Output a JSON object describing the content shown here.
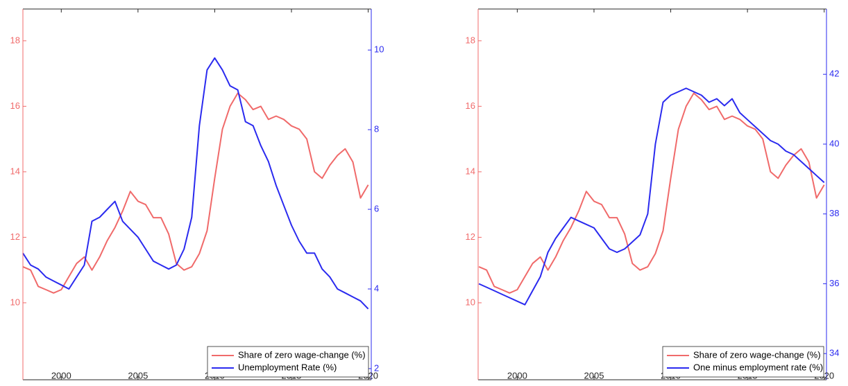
{
  "chart_data": [
    {
      "type": "line",
      "x": [
        1997.5,
        1998,
        1998.5,
        1999,
        1999.5,
        2000,
        2000.5,
        2001,
        2001.5,
        2002,
        2002.5,
        2003,
        2003.5,
        2004,
        2004.5,
        2005,
        2005.5,
        2006,
        2006.5,
        2007,
        2007.5,
        2008,
        2008.5,
        2009,
        2009.5,
        2010,
        2010.5,
        2011,
        2011.5,
        2012,
        2012.5,
        2013,
        2013.5,
        2014,
        2014.5,
        2015,
        2015.5,
        2016,
        2016.5,
        2017,
        2017.5,
        2018,
        2018.5,
        2019,
        2019.5,
        2020
      ],
      "series": [
        {
          "name": "Share of zero wage-change (%)",
          "color": "#f06a6a",
          "axis": "y",
          "values": [
            11.1,
            11.0,
            10.5,
            10.4,
            10.3,
            10.4,
            10.8,
            11.2,
            11.4,
            11.0,
            11.4,
            11.9,
            12.3,
            12.8,
            13.4,
            13.1,
            13.0,
            12.6,
            12.6,
            12.1,
            11.2,
            11.0,
            11.1,
            11.5,
            12.2,
            13.8,
            15.3,
            16.0,
            16.4,
            16.2,
            15.9,
            16.0,
            15.6,
            15.7,
            15.6,
            15.4,
            15.3,
            15.0,
            14.0,
            13.8,
            14.2,
            14.5,
            14.7,
            14.3,
            13.2,
            13.6
          ]
        },
        {
          "name": "Unemployment Rate (%)",
          "color": "#2a2aef",
          "axis": "y2",
          "values": [
            4.9,
            4.6,
            4.5,
            4.3,
            4.2,
            4.1,
            4.0,
            4.3,
            4.6,
            5.7,
            5.8,
            6.0,
            6.2,
            5.7,
            5.5,
            5.3,
            5.0,
            4.7,
            4.6,
            4.5,
            4.6,
            5.0,
            5.8,
            8.1,
            9.5,
            9.8,
            9.5,
            9.1,
            9.0,
            8.2,
            8.1,
            7.6,
            7.2,
            6.6,
            6.1,
            5.6,
            5.2,
            4.9,
            4.9,
            4.5,
            4.3,
            4.0,
            3.9,
            3.8,
            3.7,
            3.5
          ]
        }
      ],
      "xlim": [
        1997.5,
        2020.2
      ],
      "xticks": [
        2000,
        2005,
        2010,
        2015,
        2020
      ],
      "ylim": [
        7.65,
        18.97
      ],
      "yticks": [
        10,
        12,
        14,
        16,
        18
      ],
      "y2lim": [
        1.72,
        11.03
      ],
      "y2ticks": [
        2,
        4,
        6,
        8,
        10
      ],
      "legend": "lower right"
    },
    {
      "type": "line",
      "x": [
        1997.5,
        1998,
        1998.5,
        1999,
        1999.5,
        2000,
        2000.5,
        2001,
        2001.5,
        2002,
        2002.5,
        2003,
        2003.5,
        2004,
        2004.5,
        2005,
        2005.5,
        2006,
        2006.5,
        2007,
        2007.5,
        2008,
        2008.5,
        2009,
        2009.5,
        2010,
        2010.5,
        2011,
        2011.5,
        2012,
        2012.5,
        2013,
        2013.5,
        2014,
        2014.5,
        2015,
        2015.5,
        2016,
        2016.5,
        2017,
        2017.5,
        2018,
        2018.5,
        2019,
        2019.5,
        2020
      ],
      "series": [
        {
          "name": "Share of zero wage-change (%)",
          "color": "#f06a6a",
          "axis": "y",
          "values": [
            11.1,
            11.0,
            10.5,
            10.4,
            10.3,
            10.4,
            10.8,
            11.2,
            11.4,
            11.0,
            11.4,
            11.9,
            12.3,
            12.8,
            13.4,
            13.1,
            13.0,
            12.6,
            12.6,
            12.1,
            11.2,
            11.0,
            11.1,
            11.5,
            12.2,
            13.8,
            15.3,
            16.0,
            16.4,
            16.2,
            15.9,
            16.0,
            15.6,
            15.7,
            15.6,
            15.4,
            15.3,
            15.0,
            14.0,
            13.8,
            14.2,
            14.5,
            14.7,
            14.3,
            13.2,
            13.6
          ]
        },
        {
          "name": "One minus employment rate (%)",
          "color": "#2a2aef",
          "axis": "y2",
          "values": [
            36.0,
            35.9,
            35.8,
            35.7,
            35.6,
            35.5,
            35.4,
            35.8,
            36.2,
            36.9,
            37.3,
            37.6,
            37.9,
            37.8,
            37.7,
            37.6,
            37.3,
            37.0,
            36.9,
            37.0,
            37.2,
            37.4,
            38.0,
            40.0,
            41.2,
            41.4,
            41.5,
            41.6,
            41.5,
            41.4,
            41.2,
            41.3,
            41.1,
            41.3,
            40.9,
            40.7,
            40.5,
            40.3,
            40.1,
            40.0,
            39.8,
            39.7,
            39.5,
            39.3,
            39.1,
            38.9
          ]
        }
      ],
      "xlim": [
        1997.45,
        2020.15
      ],
      "xticks": [
        2000,
        2005,
        2010,
        2015,
        2020
      ],
      "ylim": [
        7.65,
        18.97
      ],
      "yticks": [
        10,
        12,
        14,
        16,
        18
      ],
      "y2lim": [
        33.25,
        43.87
      ],
      "y2ticks": [
        34,
        36,
        38,
        40,
        42
      ],
      "legend": "lower right"
    }
  ]
}
